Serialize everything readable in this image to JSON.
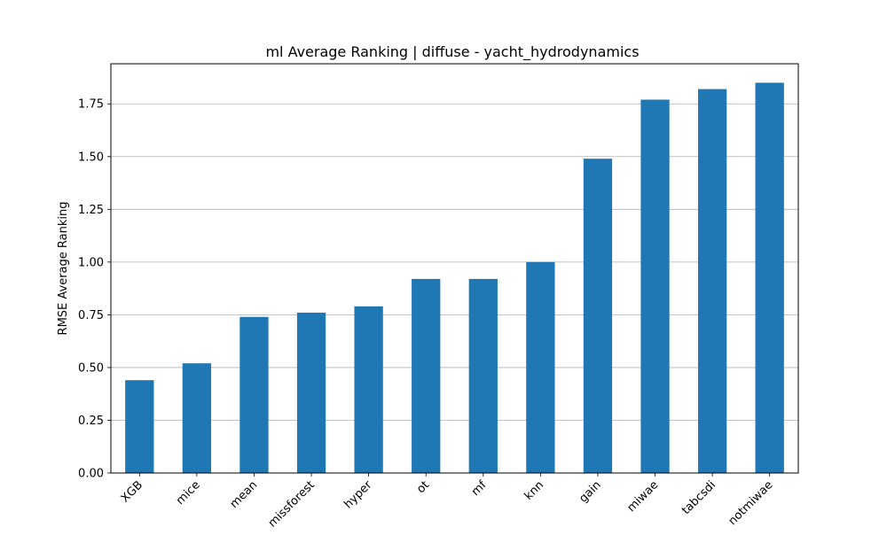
{
  "chart_data": {
    "type": "bar",
    "title": "ml Average Ranking | diffuse - yacht_hydrodynamics",
    "xlabel": "",
    "ylabel": "RMSE Average Ranking",
    "categories": [
      "XGB",
      "mice",
      "mean",
      "missforest",
      "hyper",
      "ot",
      "mf",
      "knn",
      "gain",
      "miwae",
      "tabcsdi",
      "notmiwae"
    ],
    "values": [
      0.44,
      0.52,
      0.74,
      0.76,
      0.79,
      0.92,
      0.92,
      1.0,
      1.49,
      1.77,
      1.82,
      1.85
    ],
    "ylim": [
      0,
      1.94
    ],
    "yticks": [
      0.0,
      0.25,
      0.5,
      0.75,
      1.0,
      1.25,
      1.5,
      1.75
    ],
    "ytick_labels": [
      "0.00",
      "0.25",
      "0.50",
      "0.75",
      "1.00",
      "1.25",
      "1.50",
      "1.75"
    ],
    "grid": "y",
    "legend": "none",
    "bar_color": "#1f77b4"
  }
}
